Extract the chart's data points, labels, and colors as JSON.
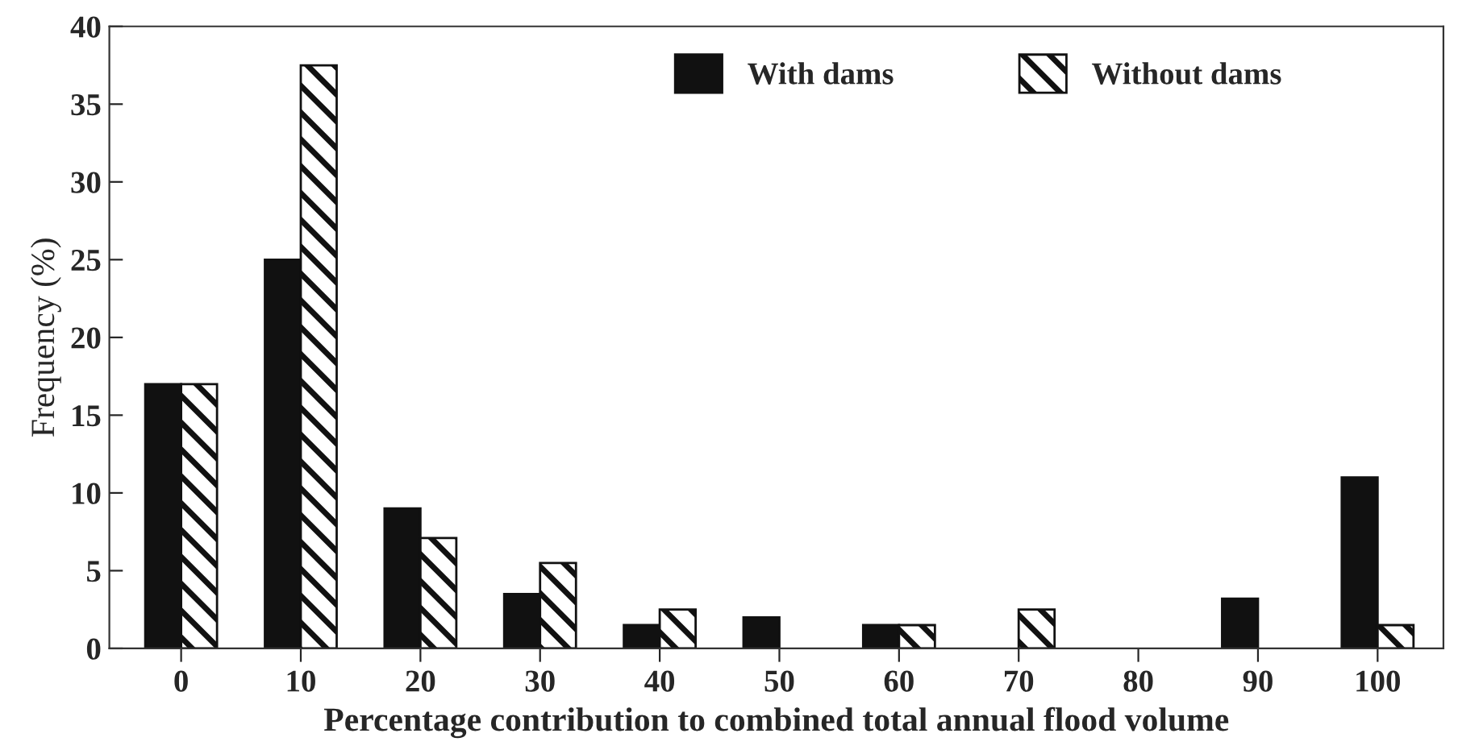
{
  "chart_data": {
    "type": "bar",
    "xlabel": "Percentage contribution to combined total annual flood volume",
    "ylabel": "Frequency (%)",
    "categories": [
      "0",
      "10",
      "20",
      "30",
      "40",
      "50",
      "60",
      "70",
      "80",
      "90",
      "100"
    ],
    "series": [
      {
        "name": "With dams",
        "color": "#111111",
        "values": [
          17,
          25,
          9,
          3.5,
          1.5,
          2,
          1.5,
          null,
          null,
          3.2,
          11
        ]
      },
      {
        "name": "Without dams",
        "color": "#111111",
        "values": [
          17,
          37.5,
          7.1,
          5.5,
          2.5,
          null,
          1.5,
          2.5,
          null,
          null,
          1.5
        ]
      }
    ],
    "ylim": [
      0,
      40
    ],
    "yticks": [
      0,
      5,
      10,
      15,
      20,
      25,
      30,
      35,
      40
    ],
    "grid": false,
    "legend": "top right"
  }
}
